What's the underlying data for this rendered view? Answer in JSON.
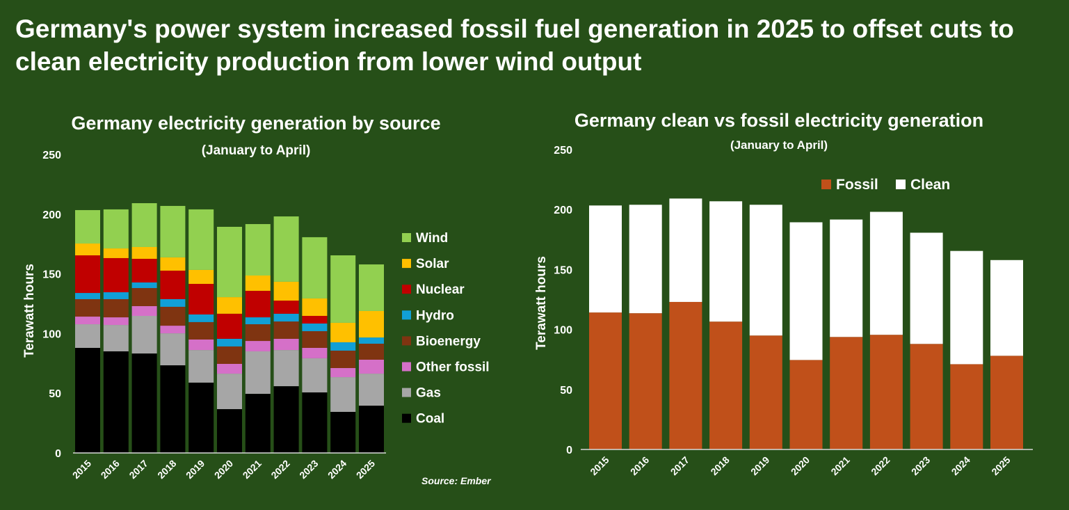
{
  "headline": "Germany's power system increased fossil fuel generation in 2025 to offset cuts to clean electricity production from lower wind output",
  "colors": {
    "background": "#264f18",
    "Wind": "#92d050",
    "Solar": "#ffc000",
    "Nuclear": "#c00000",
    "Hydro": "#119fd6",
    "Bioenergy": "#7f3411",
    "Other fossil": "#d570c8",
    "Gas": "#a6a6a6",
    "Coal": "#000000",
    "Fossil": "#c0501a",
    "Clean": "#ffffff"
  },
  "chart_data": [
    {
      "type": "bar",
      "stacked": true,
      "title": "Germany electricity generation by source",
      "subtitle": "(January to April)",
      "ylabel": "Terawatt hours",
      "xlabel": "",
      "ylim": [
        0,
        250
      ],
      "yticks": [
        0,
        50,
        100,
        150,
        200,
        250
      ],
      "legend_position": "right",
      "source": "Source: Ember",
      "categories": [
        "2015",
        "2016",
        "2017",
        "2018",
        "2019",
        "2020",
        "2021",
        "2022",
        "2023",
        "2024",
        "2025"
      ],
      "series": [
        {
          "name": "Coal",
          "values": [
            88.0,
            85.1,
            83.3,
            73.4,
            58.9,
            36.7,
            49.5,
            55.9,
            50.7,
            34.4,
            39.6
          ]
        },
        {
          "name": "Gas",
          "values": [
            19.8,
            22.1,
            31.5,
            26.8,
            27.3,
            29.7,
            35.6,
            30.3,
            28.6,
            29.1,
            26.8
          ]
        },
        {
          "name": "Other fossil",
          "values": [
            6.4,
            6.4,
            8.2,
            6.4,
            8.8,
            8.2,
            8.7,
            9.4,
            8.7,
            7.6,
            11.7
          ]
        },
        {
          "name": "Bioenergy",
          "values": [
            14.6,
            15.2,
            15.1,
            15.8,
            14.6,
            14.6,
            14.0,
            14.5,
            14.0,
            14.6,
            13.4
          ]
        },
        {
          "name": "Hydro",
          "values": [
            5.2,
            5.8,
            4.7,
            6.4,
            6.4,
            6.4,
            5.8,
            6.5,
            6.4,
            7.0,
            5.2
          ]
        },
        {
          "name": "Nuclear",
          "values": [
            31.5,
            28.6,
            19.8,
            23.9,
            25.6,
            21.0,
            22.2,
            11.0,
            6.4,
            0,
            0
          ]
        },
        {
          "name": "Solar",
          "values": [
            9.9,
            8.1,
            9.9,
            11.1,
            11.7,
            13.9,
            12.8,
            15.8,
            14.6,
            16.3,
            22.2
          ]
        },
        {
          "name": "Wind",
          "values": [
            28.0,
            32.7,
            36.7,
            43.1,
            50.7,
            58.9,
            43.1,
            54.7,
            51.3,
            56.5,
            39.0
          ]
        }
      ]
    },
    {
      "type": "bar",
      "stacked": true,
      "title": "Germany clean vs fossil electricity generation",
      "subtitle": "(January to April)",
      "ylabel": "Terawatt hours",
      "xlabel": "",
      "ylim": [
        0,
        250
      ],
      "yticks": [
        0,
        50,
        100,
        150,
        200,
        250
      ],
      "legend_position": "top",
      "categories": [
        "2015",
        "2016",
        "2017",
        "2018",
        "2019",
        "2020",
        "2021",
        "2022",
        "2023",
        "2024",
        "2025"
      ],
      "series": [
        {
          "name": "Fossil",
          "values": [
            114.2,
            113.6,
            123.0,
            106.6,
            95.0,
            74.6,
            93.8,
            95.6,
            88.0,
            71.1,
            78.1
          ]
        },
        {
          "name": "Clean",
          "values": [
            89.2,
            90.4,
            86.2,
            100.3,
            109.0,
            114.8,
            97.9,
            102.5,
            92.7,
            94.4,
            79.8
          ]
        }
      ]
    }
  ]
}
